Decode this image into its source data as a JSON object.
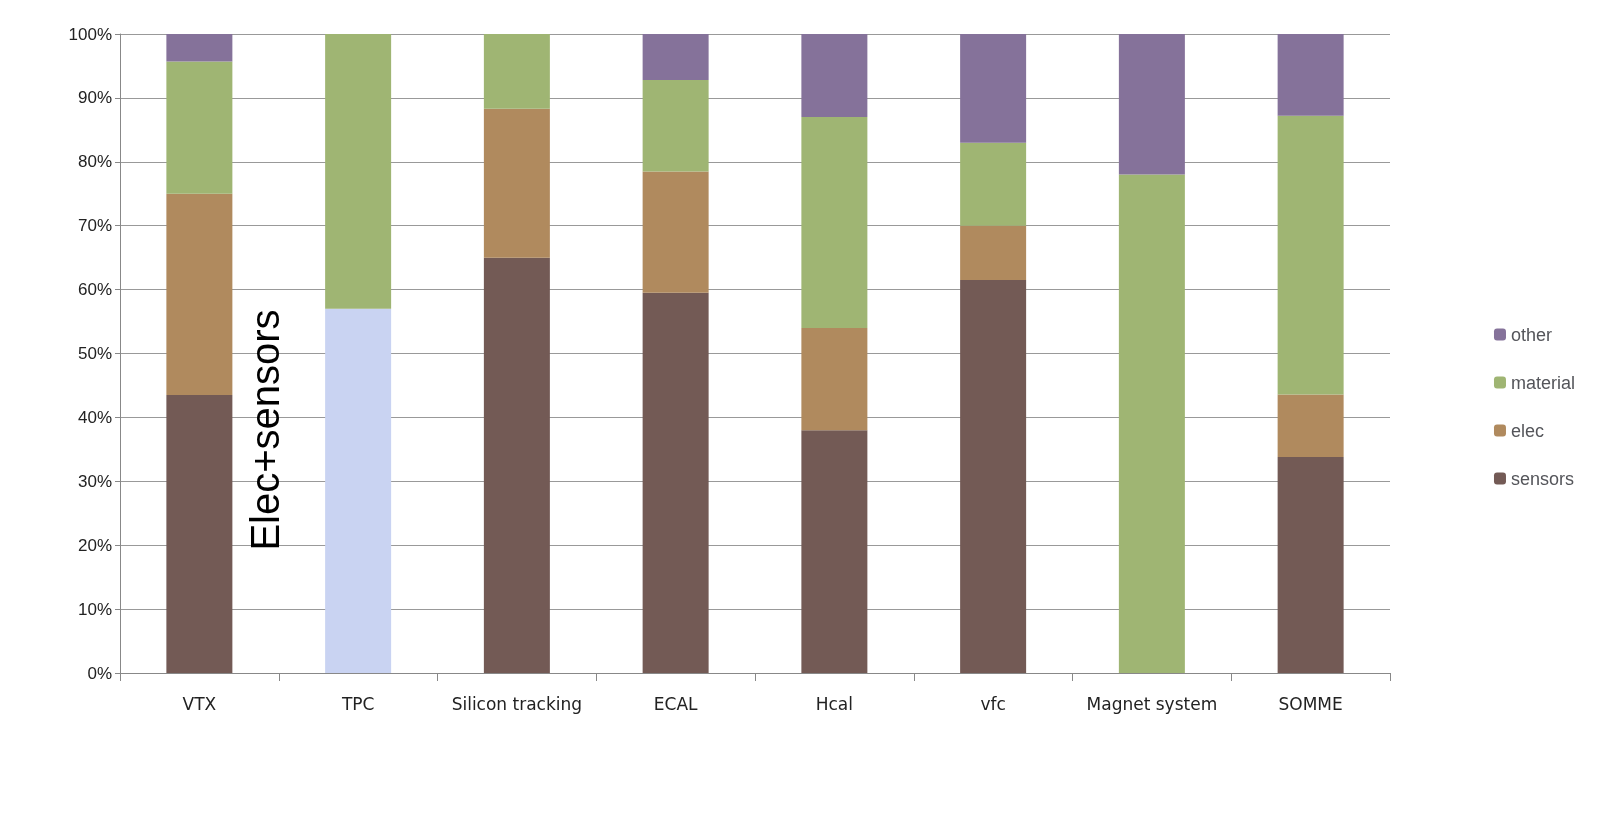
{
  "chart_data": {
    "type": "bar",
    "stacked": true,
    "categories": [
      "VTX",
      "TPC",
      "Silicon tracking",
      "ECAL",
      "Hcal",
      "vfc",
      "Magnet system",
      "SOMME"
    ],
    "series": [
      {
        "color": "#c9d3f2",
        "values": [
          null,
          57,
          null,
          null,
          null,
          null,
          null,
          null
        ]
      },
      {
        "name": "sensors",
        "color": "#735a55",
        "values": [
          43.5,
          null,
          65,
          59.5,
          38,
          61.5,
          null,
          33.8
        ]
      },
      {
        "name": "elec",
        "color": "#b08a5e",
        "values": [
          31.5,
          null,
          23.3,
          19,
          16,
          8.5,
          null,
          9.8
        ]
      },
      {
        "name": "material",
        "color": "#9fb573",
        "values": [
          20.7,
          43,
          11.7,
          14.3,
          33,
          13,
          78,
          43.6
        ]
      },
      {
        "name": "other",
        "color": "#85729a",
        "values": [
          4.3,
          null,
          null,
          7.2,
          13,
          17,
          22,
          12.8
        ]
      }
    ],
    "ylim": [
      0,
      100
    ],
    "yticks": [
      {
        "value": 0,
        "label": "0%"
      },
      {
        "value": 10,
        "label": "10%"
      },
      {
        "value": 20,
        "label": "20%"
      },
      {
        "value": 30,
        "label": "30%"
      },
      {
        "value": 40,
        "label": "40%"
      },
      {
        "value": 50,
        "label": "50%"
      },
      {
        "value": 60,
        "label": "60%"
      },
      {
        "value": 70,
        "label": "70%"
      },
      {
        "value": 80,
        "label": "80%"
      },
      {
        "value": 90,
        "label": "90%"
      },
      {
        "value": 100,
        "label": "100%"
      }
    ],
    "grid": "y",
    "legend": "right",
    "annotations": [
      "Elec+sensors"
    ]
  }
}
